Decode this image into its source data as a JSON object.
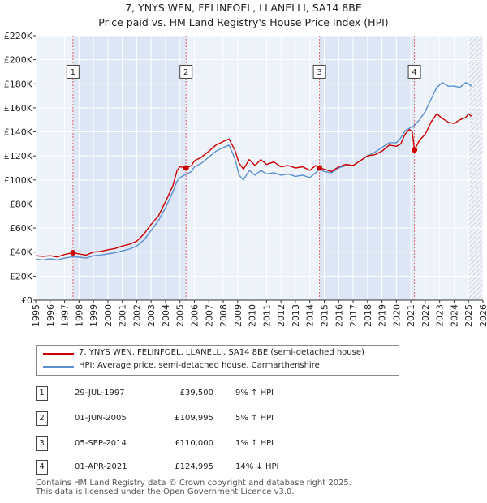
{
  "chart_data": {
    "type": "line",
    "title": "7, YNYS WEN, FELINFOEL, LLANELLI, SA14 8BE",
    "subtitle": "Price paid vs. HM Land Registry's House Price Index (HPI)",
    "xlim": [
      1995,
      2026
    ],
    "ylim": [
      0,
      220000
    ],
    "x_ticks": [
      "1995",
      "1996",
      "1997",
      "1998",
      "1999",
      "2000",
      "2001",
      "2002",
      "2003",
      "2004",
      "2005",
      "2006",
      "2007",
      "2008",
      "2009",
      "2010",
      "2011",
      "2012",
      "2013",
      "2014",
      "2015",
      "2016",
      "2017",
      "2018",
      "2019",
      "2020",
      "2021",
      "2022",
      "2023",
      "2024",
      "2025",
      "2026"
    ],
    "y_ticks": [
      {
        "value": 0,
        "label": "£0"
      },
      {
        "value": 20000,
        "label": "£20K"
      },
      {
        "value": 40000,
        "label": "£40K"
      },
      {
        "value": 60000,
        "label": "£60K"
      },
      {
        "value": 80000,
        "label": "£80K"
      },
      {
        "value": 100000,
        "label": "£100K"
      },
      {
        "value": 120000,
        "label": "£120K"
      },
      {
        "value": 140000,
        "label": "£140K"
      },
      {
        "value": 160000,
        "label": "£160K"
      },
      {
        "value": 180000,
        "label": "£180K"
      },
      {
        "value": 200000,
        "label": "£200K"
      },
      {
        "value": 220000,
        "label": "£220K"
      }
    ],
    "hatch_from": 2025.0,
    "shade_ranges": [
      [
        1997.58,
        2005.42
      ],
      [
        2014.67,
        2021.25
      ]
    ],
    "series": [
      {
        "name": "7, YNYS WEN, FELINFOEL, LLANELLI, SA14 8BE (semi-detached house)",
        "color": "#cc0000",
        "points": [
          [
            1995.0,
            37000
          ],
          [
            1995.5,
            36500
          ],
          [
            1996.0,
            37000
          ],
          [
            1996.5,
            36000
          ],
          [
            1997.0,
            38000
          ],
          [
            1997.58,
            39500
          ],
          [
            1998.0,
            38500
          ],
          [
            1998.5,
            37500
          ],
          [
            1999.0,
            40000
          ],
          [
            1999.5,
            40500
          ],
          [
            2000.0,
            42000
          ],
          [
            2000.5,
            43000
          ],
          [
            2001.0,
            45000
          ],
          [
            2001.5,
            46500
          ],
          [
            2002.0,
            49000
          ],
          [
            2002.5,
            55000
          ],
          [
            2003.0,
            63000
          ],
          [
            2003.5,
            70000
          ],
          [
            2004.0,
            82000
          ],
          [
            2004.5,
            95000
          ],
          [
            2004.8,
            108000
          ],
          [
            2005.0,
            111000
          ],
          [
            2005.42,
            109995
          ],
          [
            2005.8,
            112000
          ],
          [
            2006.0,
            116000
          ],
          [
            2006.5,
            119000
          ],
          [
            2007.0,
            124000
          ],
          [
            2007.5,
            129000
          ],
          [
            2008.0,
            132000
          ],
          [
            2008.4,
            134000
          ],
          [
            2008.8,
            125000
          ],
          [
            2009.1,
            114000
          ],
          [
            2009.4,
            109000
          ],
          [
            2009.8,
            117000
          ],
          [
            2010.2,
            112000
          ],
          [
            2010.6,
            117000
          ],
          [
            2011.0,
            113000
          ],
          [
            2011.5,
            115000
          ],
          [
            2012.0,
            111000
          ],
          [
            2012.5,
            112000
          ],
          [
            2013.0,
            110000
          ],
          [
            2013.5,
            111000
          ],
          [
            2014.0,
            108000
          ],
          [
            2014.4,
            112000
          ],
          [
            2014.67,
            110000
          ],
          [
            2015.0,
            109000
          ],
          [
            2015.5,
            107000
          ],
          [
            2016.0,
            111000
          ],
          [
            2016.5,
            113000
          ],
          [
            2017.0,
            112000
          ],
          [
            2017.5,
            116000
          ],
          [
            2018.0,
            120000
          ],
          [
            2018.5,
            121000
          ],
          [
            2019.0,
            124000
          ],
          [
            2019.5,
            129000
          ],
          [
            2020.0,
            128000
          ],
          [
            2020.3,
            130000
          ],
          [
            2020.6,
            138000
          ],
          [
            2020.9,
            142000
          ],
          [
            2021.1,
            140000
          ],
          [
            2021.25,
            124995
          ],
          [
            2021.6,
            133000
          ],
          [
            2022.0,
            138000
          ],
          [
            2022.4,
            148000
          ],
          [
            2022.8,
            155000
          ],
          [
            2023.2,
            151000
          ],
          [
            2023.6,
            148000
          ],
          [
            2024.0,
            147000
          ],
          [
            2024.4,
            150000
          ],
          [
            2024.8,
            152000
          ],
          [
            2025.0,
            155000
          ],
          [
            2025.2,
            153000
          ]
        ]
      },
      {
        "name": "HPI: Average price, semi-detached house, Carmarthenshire",
        "color": "#5b8fd0",
        "points": [
          [
            1995.0,
            34000
          ],
          [
            1995.5,
            33500
          ],
          [
            1996.0,
            34500
          ],
          [
            1996.5,
            33500
          ],
          [
            1997.0,
            35000
          ],
          [
            1997.58,
            36200
          ],
          [
            1998.0,
            35800
          ],
          [
            1998.5,
            35000
          ],
          [
            1999.0,
            37000
          ],
          [
            1999.5,
            37500
          ],
          [
            2000.0,
            38500
          ],
          [
            2000.5,
            39500
          ],
          [
            2001.0,
            41000
          ],
          [
            2001.5,
            42500
          ],
          [
            2002.0,
            45000
          ],
          [
            2002.5,
            50000
          ],
          [
            2003.0,
            58000
          ],
          [
            2003.5,
            66000
          ],
          [
            2004.0,
            77000
          ],
          [
            2004.5,
            90000
          ],
          [
            2004.8,
            99000
          ],
          [
            2005.0,
            102000
          ],
          [
            2005.42,
            104750
          ],
          [
            2005.8,
            107000
          ],
          [
            2006.0,
            111000
          ],
          [
            2006.5,
            114000
          ],
          [
            2007.0,
            119000
          ],
          [
            2007.5,
            124000
          ],
          [
            2008.0,
            127000
          ],
          [
            2008.4,
            129000
          ],
          [
            2008.8,
            118000
          ],
          [
            2009.1,
            104000
          ],
          [
            2009.4,
            100000
          ],
          [
            2009.8,
            108000
          ],
          [
            2010.2,
            104000
          ],
          [
            2010.6,
            108000
          ],
          [
            2011.0,
            105000
          ],
          [
            2011.5,
            106000
          ],
          [
            2012.0,
            104000
          ],
          [
            2012.5,
            105000
          ],
          [
            2013.0,
            103000
          ],
          [
            2013.5,
            104000
          ],
          [
            2014.0,
            102000
          ],
          [
            2014.4,
            106000
          ],
          [
            2014.67,
            108900
          ],
          [
            2015.0,
            107000
          ],
          [
            2015.5,
            106000
          ],
          [
            2016.0,
            110000
          ],
          [
            2016.5,
            112000
          ],
          [
            2017.0,
            112000
          ],
          [
            2017.5,
            116000
          ],
          [
            2018.0,
            120000
          ],
          [
            2018.5,
            123000
          ],
          [
            2019.0,
            127000
          ],
          [
            2019.5,
            131000
          ],
          [
            2020.0,
            131000
          ],
          [
            2020.3,
            135000
          ],
          [
            2020.6,
            141000
          ],
          [
            2020.9,
            143000
          ],
          [
            2021.25,
            145340
          ],
          [
            2021.6,
            150000
          ],
          [
            2022.0,
            157000
          ],
          [
            2022.4,
            167000
          ],
          [
            2022.8,
            177000
          ],
          [
            2023.2,
            181000
          ],
          [
            2023.6,
            178000
          ],
          [
            2024.0,
            178000
          ],
          [
            2024.4,
            177000
          ],
          [
            2024.8,
            181000
          ],
          [
            2025.0,
            180000
          ],
          [
            2025.2,
            178000
          ]
        ]
      }
    ],
    "sales": [
      {
        "label": "1",
        "x": 1997.58,
        "value": 39500
      },
      {
        "label": "2",
        "x": 2005.42,
        "value": 109995
      },
      {
        "label": "3",
        "x": 2014.67,
        "value": 110000
      },
      {
        "label": "4",
        "x": 2021.25,
        "value": 124995
      }
    ],
    "sale_label_y": 190000
  },
  "legend": {
    "property": "7, YNYS WEN, FELINFOEL, LLANELLI, SA14 8BE (semi-detached house)",
    "hpi": "HPI: Average price, semi-detached house, Carmarthenshire"
  },
  "transactions": [
    {
      "num": "1",
      "date": "29-JUL-1997",
      "price": "£39,500",
      "hpi": "9% ↑ HPI"
    },
    {
      "num": "2",
      "date": "01-JUN-2005",
      "price": "£109,995",
      "hpi": "5% ↑ HPI"
    },
    {
      "num": "3",
      "date": "05-SEP-2014",
      "price": "£110,000",
      "hpi": "1% ↑ HPI"
    },
    {
      "num": "4",
      "date": "01-APR-2021",
      "price": "£124,995",
      "hpi": "14% ↓ HPI"
    }
  ],
  "footer": {
    "line1": "Contains HM Land Registry data © Crown copyright and database right 2025.",
    "line2": "This data is licensed under the Open Government Licence v3.0."
  }
}
